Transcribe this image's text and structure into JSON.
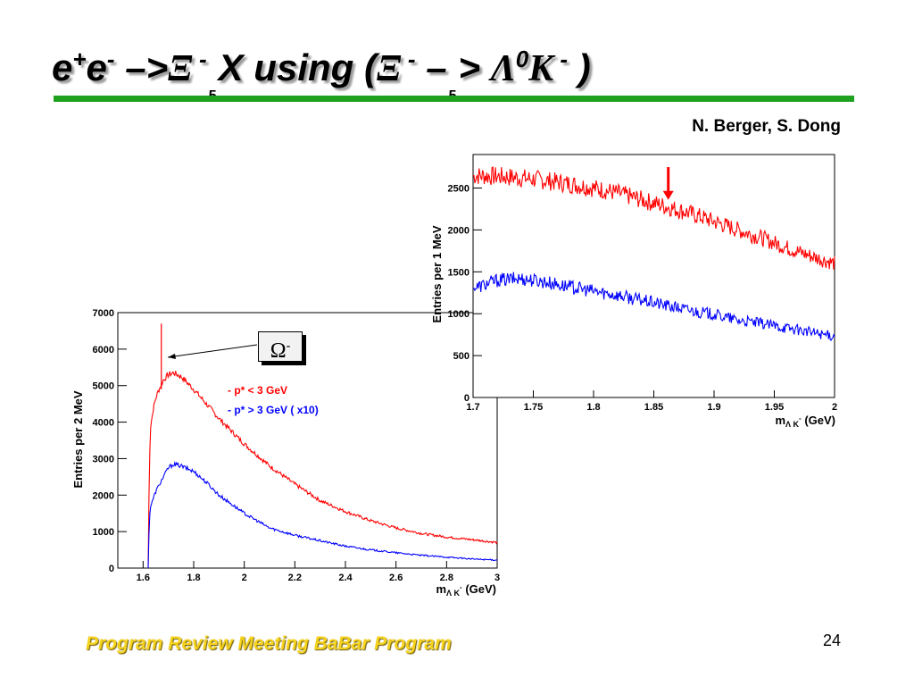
{
  "slide": {
    "title": {
      "part1": "e",
      "sup1": "+",
      "part2": "e",
      "sup2": "-",
      "arrow1": " –>",
      "xi1": "Ξ",
      "sup3": " -",
      "sub1": "5",
      "part3": "X  using (",
      "xi2": "Ξ",
      "sup4": " -",
      "arrow2": " –",
      "sub2": "5",
      "arrow3": "> ",
      "lambda": "Λ",
      "sup5": "0",
      "kaon": "K",
      "sup6": " -",
      "close": " )"
    },
    "authors": "N. Berger, S. Dong",
    "footer": "Program Review Meeting BaBar Program",
    "page_number": "24",
    "omega_label": "Ω",
    "omega_sup": "-"
  },
  "colors": {
    "red": "#ff0000",
    "blue": "#0000ff",
    "green_rule": "#1fa11f",
    "footer_yellow": "#f5d21e"
  },
  "chart_data": [
    {
      "type": "line",
      "ylabel": "Entries per 2 MeV",
      "xlabel_main": "m",
      "xlabel_sub": "Λ K",
      "xlabel_sup": "-",
      "xlabel_unit": " (GeV)",
      "xlim": [
        1.5,
        3.0
      ],
      "ylim": [
        0,
        7000
      ],
      "xticks": [
        "1.6",
        "1.8",
        "2",
        "2.2",
        "2.4",
        "2.6",
        "2.8",
        "3"
      ],
      "xtick_values": [
        1.6,
        1.8,
        2.0,
        2.2,
        2.4,
        2.6,
        2.8,
        3.0
      ],
      "yticks": [
        "0",
        "1000",
        "2000",
        "3000",
        "4000",
        "5000",
        "6000",
        "7000"
      ],
      "ytick_values": [
        0,
        1000,
        2000,
        3000,
        4000,
        5000,
        6000,
        7000
      ],
      "legend": [
        "- p* < 3 GeV",
        "- p* > 3 GeV ( x10)"
      ],
      "peak": {
        "x": 1.672,
        "y": 6700
      },
      "series": [
        {
          "name": "- p* < 3 GeV",
          "color": "#ff0000",
          "x": [
            1.62,
            1.625,
            1.63,
            1.64,
            1.65,
            1.66,
            1.68,
            1.7,
            1.72,
            1.75,
            1.8,
            1.85,
            1.9,
            2.0,
            2.1,
            2.2,
            2.3,
            2.4,
            2.5,
            2.6,
            2.7,
            2.8,
            2.9,
            3.0
          ],
          "y": [
            0,
            3000,
            3900,
            4350,
            4650,
            4850,
            5150,
            5300,
            5350,
            5250,
            4900,
            4500,
            4100,
            3400,
            2800,
            2300,
            1850,
            1550,
            1300,
            1100,
            950,
            850,
            780,
            700
          ]
        },
        {
          "name": "- p* > 3 GeV ( x10)",
          "color": "#0000ff",
          "x": [
            1.62,
            1.625,
            1.63,
            1.65,
            1.68,
            1.7,
            1.72,
            1.75,
            1.8,
            1.85,
            1.9,
            2.0,
            2.1,
            2.2,
            2.3,
            2.4,
            2.5,
            2.6,
            2.7,
            2.8,
            2.9,
            3.0
          ],
          "y": [
            0,
            1400,
            1700,
            2100,
            2500,
            2750,
            2850,
            2800,
            2650,
            2350,
            2000,
            1500,
            1100,
            900,
            750,
            600,
            500,
            420,
            350,
            300,
            250,
            220
          ]
        }
      ]
    },
    {
      "type": "line",
      "ylabel": "Entries per 1 MeV",
      "xlabel_main": "m",
      "xlabel_sub": "Λ K",
      "xlabel_sup": "-",
      "xlabel_unit": " (GeV)",
      "xlim": [
        1.7,
        2.0
      ],
      "ylim": [
        0,
        2900
      ],
      "xticks": [
        "1.7",
        "1.75",
        "1.8",
        "1.85",
        "1.9",
        "1.95",
        "2"
      ],
      "xtick_values": [
        1.7,
        1.75,
        1.8,
        1.85,
        1.9,
        1.95,
        2.0
      ],
      "yticks": [
        "0",
        "500",
        "1000",
        "1500",
        "2000",
        "2500"
      ],
      "ytick_values": [
        0,
        500,
        1000,
        1500,
        2000,
        2500
      ],
      "arrow_marker": {
        "x": 1.862,
        "y_from": 2750,
        "y_to": 2380
      },
      "series": [
        {
          "name": "",
          "color": "#ff0000",
          "x": [
            1.7,
            1.72,
            1.74,
            1.76,
            1.78,
            1.8,
            1.82,
            1.84,
            1.86,
            1.88,
            1.9,
            1.92,
            1.94,
            1.96,
            1.98,
            2.0
          ],
          "y": [
            2650,
            2640,
            2620,
            2590,
            2550,
            2500,
            2440,
            2360,
            2280,
            2200,
            2100,
            2000,
            1900,
            1790,
            1690,
            1600
          ]
        },
        {
          "name": "",
          "color": "#0000ff",
          "x": [
            1.7,
            1.72,
            1.74,
            1.76,
            1.78,
            1.8,
            1.82,
            1.84,
            1.86,
            1.88,
            1.9,
            1.92,
            1.94,
            1.96,
            1.98,
            2.0
          ],
          "y": [
            1300,
            1400,
            1420,
            1380,
            1320,
            1270,
            1220,
            1160,
            1100,
            1040,
            990,
            920,
            880,
            830,
            780,
            730
          ]
        }
      ]
    }
  ]
}
